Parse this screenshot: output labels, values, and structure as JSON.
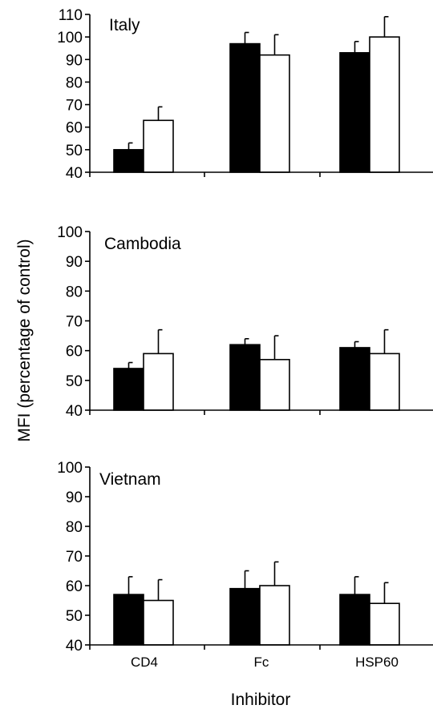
{
  "chart_data": [
    {
      "type": "bar",
      "title": "Italy",
      "categories": [
        "CD4",
        "Fc",
        "HSP60"
      ],
      "series": [
        {
          "color": "#000000",
          "values": [
            50,
            97,
            93
          ],
          "errors": [
            3,
            5,
            5
          ]
        },
        {
          "color": "#ffffff",
          "values": [
            63,
            92,
            100
          ],
          "errors": [
            6,
            9,
            9
          ]
        }
      ],
      "ylim": [
        40,
        110
      ],
      "yticks": [
        40,
        50,
        60,
        70,
        80,
        90,
        100,
        110
      ],
      "grid": false
    },
    {
      "type": "bar",
      "title": "Cambodia",
      "categories": [
        "CD4",
        "Fc",
        "HSP60"
      ],
      "series": [
        {
          "color": "#000000",
          "values": [
            54,
            62,
            61
          ],
          "errors": [
            2,
            2,
            2
          ]
        },
        {
          "color": "#ffffff",
          "values": [
            59,
            57,
            59
          ],
          "errors": [
            8,
            8,
            8
          ]
        }
      ],
      "ylim": [
        40,
        100
      ],
      "yticks": [
        40,
        50,
        60,
        70,
        80,
        90,
        100
      ],
      "grid": false
    },
    {
      "type": "bar",
      "title": "Vietnam",
      "categories": [
        "CD4",
        "Fc",
        "HSP60"
      ],
      "series": [
        {
          "color": "#000000",
          "values": [
            57,
            59,
            57
          ],
          "errors": [
            6,
            6,
            6
          ]
        },
        {
          "color": "#ffffff",
          "values": [
            55,
            60,
            54
          ],
          "errors": [
            7,
            8,
            7
          ]
        }
      ],
      "ylim": [
        40,
        100
      ],
      "yticks": [
        40,
        50,
        60,
        70,
        80,
        90,
        100
      ],
      "grid": false
    }
  ],
  "ylabel": "MFI (percentage of control)",
  "xlabel": "Inhibitor",
  "x_tick_labels": [
    "CD4",
    "Fc",
    "HSP60"
  ]
}
